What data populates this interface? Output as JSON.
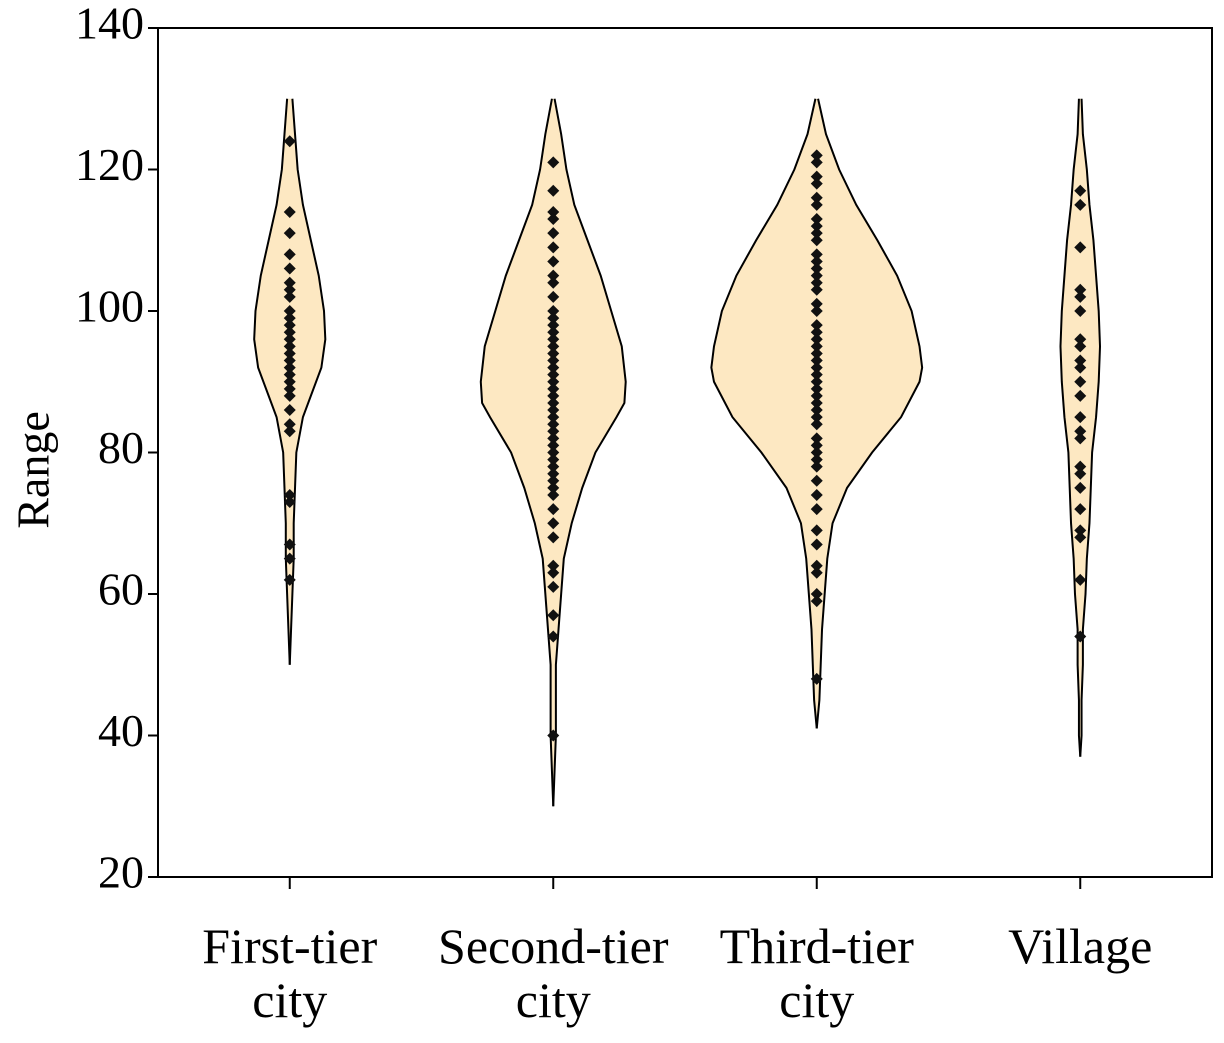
{
  "chart_data": {
    "type": "violin",
    "y_label": "Range",
    "fill": "#fde8c2",
    "point_color": "#111111",
    "ylim": [
      20,
      140
    ],
    "yticks": [
      20,
      40,
      60,
      80,
      100,
      120,
      140
    ],
    "categories": [
      "First-tier city",
      "Second-tier city",
      "Third-tier city",
      "Village"
    ],
    "series": [
      {
        "points": [
          124,
          114,
          111,
          108,
          106,
          104,
          103,
          102,
          100,
          99,
          98,
          97,
          96,
          95,
          94,
          93,
          92,
          91,
          90,
          89,
          88,
          86,
          84,
          83,
          74,
          73,
          67,
          65,
          62
        ],
        "density_y": [
          130,
          125,
          120,
          115,
          110,
          105,
          100,
          96,
          92,
          88,
          85,
          80,
          75,
          70,
          65,
          60,
          55,
          50
        ],
        "density_width": [
          0.01,
          0.02,
          0.03,
          0.05,
          0.08,
          0.11,
          0.13,
          0.135,
          0.12,
          0.08,
          0.05,
          0.025,
          0.02,
          0.015,
          0.015,
          0.01,
          0.005,
          0
        ]
      },
      {
        "points": [
          121,
          117,
          114,
          113,
          111,
          109,
          107,
          105,
          104,
          102,
          100,
          99,
          98,
          97,
          96,
          95,
          94,
          93,
          92,
          91,
          90,
          89,
          88,
          87,
          86,
          85,
          84,
          83,
          82,
          81,
          80,
          79,
          78,
          77,
          76,
          75,
          74,
          72,
          70,
          68,
          64,
          63,
          61,
          57,
          54,
          40
        ],
        "density_y": [
          130,
          125,
          120,
          115,
          110,
          105,
          100,
          95,
          90,
          87,
          85,
          80,
          75,
          70,
          65,
          60,
          55,
          50,
          45,
          40,
          35,
          30
        ],
        "density_width": [
          0.005,
          0.03,
          0.05,
          0.08,
          0.13,
          0.18,
          0.22,
          0.26,
          0.275,
          0.27,
          0.24,
          0.16,
          0.11,
          0.07,
          0.04,
          0.03,
          0.02,
          0.01,
          0.01,
          0.01,
          0.005,
          0
        ]
      },
      {
        "points": [
          122,
          121,
          119,
          118,
          116,
          115,
          113,
          112,
          111,
          110,
          108,
          107,
          106,
          105,
          104,
          103,
          101,
          100,
          98,
          97,
          96,
          95,
          94,
          93,
          92,
          91,
          90,
          89,
          88,
          87,
          86,
          85,
          84,
          82,
          81,
          80,
          79,
          78,
          76,
          74,
          72,
          69,
          67,
          64,
          63,
          60,
          59,
          48
        ],
        "density_y": [
          130,
          125,
          120,
          115,
          110,
          105,
          100,
          95,
          92,
          90,
          85,
          80,
          75,
          70,
          65,
          60,
          55,
          50,
          45,
          41
        ],
        "density_width": [
          0.005,
          0.035,
          0.085,
          0.15,
          0.23,
          0.305,
          0.36,
          0.39,
          0.4,
          0.39,
          0.32,
          0.21,
          0.115,
          0.06,
          0.04,
          0.03,
          0.02,
          0.015,
          0.01,
          0
        ]
      },
      {
        "points": [
          117,
          115,
          109,
          103,
          102,
          100,
          96,
          95,
          93,
          92,
          90,
          88,
          85,
          83,
          82,
          78,
          77,
          75,
          72,
          69,
          68,
          62,
          54
        ],
        "density_y": [
          130,
          125,
          120,
          115,
          110,
          105,
          100,
          95,
          90,
          85,
          80,
          75,
          70,
          65,
          60,
          55,
          50,
          45,
          40,
          37
        ],
        "density_width": [
          0.005,
          0.01,
          0.025,
          0.035,
          0.05,
          0.06,
          0.07,
          0.075,
          0.07,
          0.06,
          0.045,
          0.04,
          0.035,
          0.025,
          0.02,
          0.01,
          0.01,
          0.005,
          0.005,
          0
        ]
      }
    ]
  }
}
